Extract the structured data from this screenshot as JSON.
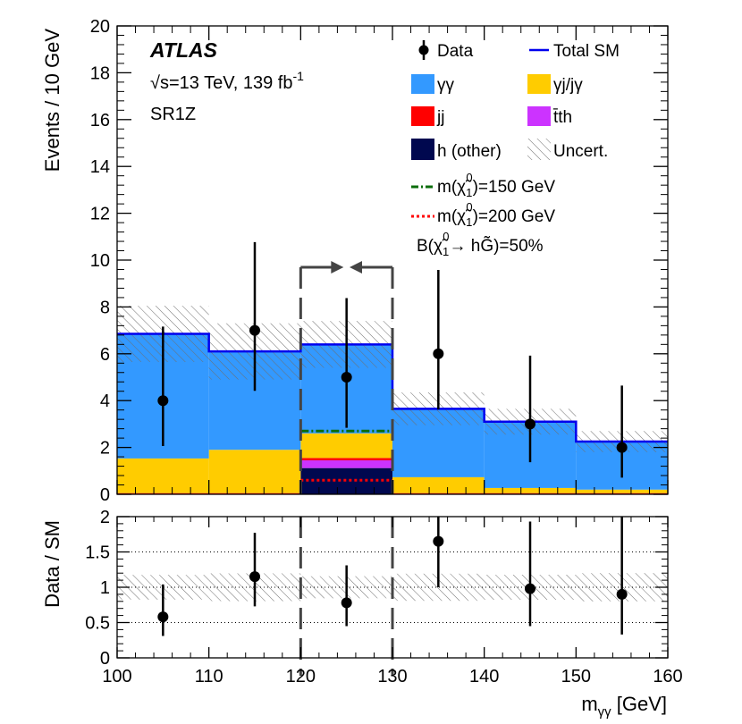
{
  "chart_data": [
    {
      "type": "stacked_histogram",
      "panel": "main",
      "title": "",
      "bin_edges": [
        100,
        110,
        120,
        130,
        140,
        150,
        160
      ],
      "stack": [
        {
          "name": "h (other)",
          "color": "#00084f",
          "values": [
            0.02,
            0.02,
            1.12,
            0.02,
            0.02,
            0.02
          ]
        },
        {
          "name": "tt̄h",
          "color": "#cc33ff",
          "values": [
            0,
            0,
            0.33,
            0,
            0,
            0
          ]
        },
        {
          "name": "jj",
          "color": "#ff0000",
          "values": [
            0.03,
            0.03,
            0.1,
            0.03,
            0.03,
            0.03
          ]
        },
        {
          "name": "γj/jγ",
          "color": "#ffcc00",
          "values": [
            1.48,
            1.85,
            1.05,
            0.68,
            0.22,
            0.15
          ]
        },
        {
          "name": "γγ",
          "color": "#3399ff",
          "values": [
            5.32,
            4.2,
            3.8,
            2.92,
            2.83,
            2.05
          ]
        }
      ],
      "total_sm": {
        "name": "Total SM",
        "color": "#0000ee",
        "values": [
          6.85,
          6.1,
          6.4,
          3.65,
          3.1,
          2.25
        ]
      },
      "uncertainty": {
        "name": "Uncert.",
        "values": [
          1.2,
          1.2,
          1.0,
          0.7,
          0.55,
          0.45
        ]
      },
      "data": {
        "name": "Data",
        "x": [
          105,
          115,
          125,
          135,
          145,
          155
        ],
        "y": [
          4,
          7,
          5,
          6,
          3,
          2
        ],
        "err_low": [
          1.94,
          2.58,
          2.16,
          2.38,
          1.63,
          1.29
        ],
        "err_high": [
          3.16,
          3.77,
          3.38,
          3.58,
          2.92,
          2.64
        ]
      },
      "signals": [
        {
          "name": "m(χ̃₁⁰)=150 GeV",
          "color": "#0b6d0b",
          "style": "dash-dot",
          "x_range": [
            120,
            130
          ],
          "value": 2.7
        },
        {
          "name": "m(χ̃₁⁰)=200 GeV",
          "color": "#ff0000",
          "style": "dotted",
          "x_range": [
            120,
            130
          ],
          "value": 0.6
        }
      ],
      "signal_window": [
        120,
        130
      ],
      "xlim": [
        100,
        160
      ],
      "ylim": [
        0,
        20
      ],
      "ylabel": "Events / 10 GeV",
      "yticks": [
        0,
        2,
        4,
        6,
        8,
        10,
        12,
        14,
        16,
        18,
        20
      ]
    },
    {
      "type": "ratio",
      "panel": "ratio",
      "x": [
        105,
        115,
        125,
        135,
        145,
        155
      ],
      "y": [
        0.58,
        1.15,
        0.78,
        1.65,
        0.98,
        0.9
      ],
      "err_low": [
        0.27,
        0.42,
        0.33,
        0.65,
        0.53,
        0.57
      ],
      "err_high": [
        0.46,
        0.62,
        0.53,
        0.98,
        0.95,
        1.17
      ],
      "band": [
        0.175,
        0.197,
        0.156,
        0.192,
        0.177,
        0.2
      ],
      "reference_lines": [
        0.5,
        1,
        1.5
      ],
      "xlim": [
        100,
        160
      ],
      "ylim": [
        0,
        2
      ],
      "ylabel": "Data / SM",
      "xlabel_main": "m",
      "xlabel_sub": "γγ",
      "xlabel_unit": " [GeV]",
      "yticks": [
        {
          "value": 0,
          "label": "0"
        },
        {
          "value": 0.5,
          "label": "0.5"
        },
        {
          "value": 1,
          "label": "1"
        },
        {
          "value": 1.5,
          "label": "1.5"
        },
        {
          "value": 2,
          "label": "2"
        }
      ],
      "xticks": [
        100,
        110,
        120,
        130,
        140,
        150,
        160
      ]
    }
  ],
  "header": {
    "experiment": "ATLAS",
    "sqrt": "√",
    "energy": "s=13 TeV, 139 fb",
    "lumi_sup": "-1",
    "region": "SR1Z"
  },
  "legend": {
    "data": "Data",
    "total_sm": "Total SM",
    "yy": "γγ",
    "yj": "γj/jγ",
    "jj": "jj",
    "tth": "t̄th",
    "h_other": "h (other)",
    "uncert": "Uncert.",
    "m150_pre": "m(",
    "m150_chi": "χ̃",
    "m150_sup": "0",
    "m150_sub": "1",
    "m150_post": ")=150 GeV",
    "m200_pre": "m(",
    "m200_chi": "χ̃",
    "m200_sup": "0",
    "m200_sub": "1",
    "m200_post": ")=200 GeV",
    "br_pre": "B(",
    "br_chi": "χ̃",
    "br_sup": "0",
    "br_sub": "1",
    "br_arrow": "→ h",
    "br_g": "G̃",
    "br_post": ")=50%"
  }
}
